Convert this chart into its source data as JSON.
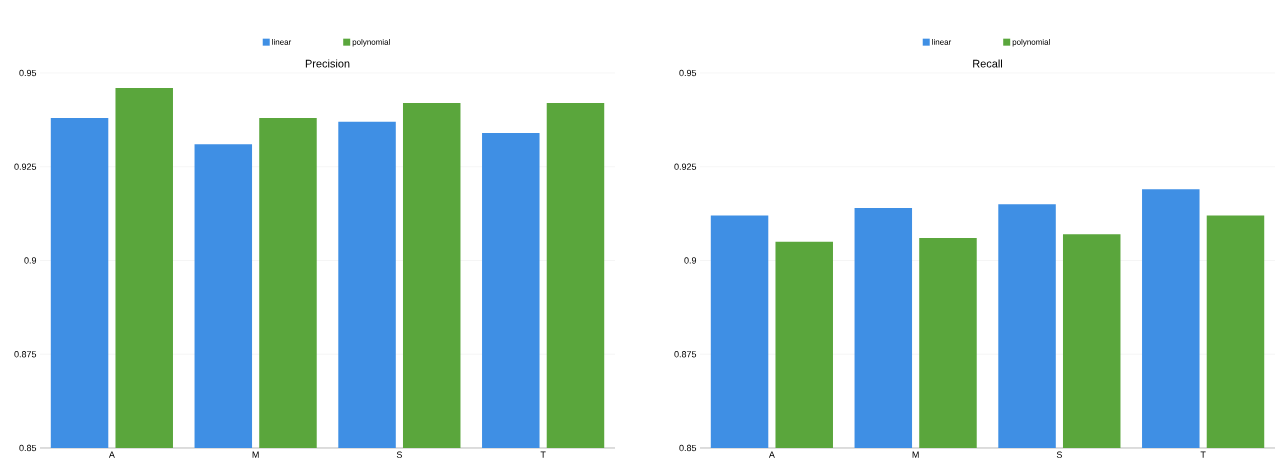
{
  "chart_data": [
    {
      "type": "bar",
      "title": "Precision",
      "categories": [
        "A",
        "M",
        "S",
        "T"
      ],
      "series": [
        {
          "name": "linear",
          "color": "#3f8fe4",
          "values": [
            0.938,
            0.931,
            0.937,
            0.934
          ]
        },
        {
          "name": "polynomial",
          "color": "#5aa63c",
          "values": [
            0.946,
            0.938,
            0.942,
            0.942
          ]
        }
      ],
      "ylim": [
        0.85,
        0.95
      ],
      "yticks": [
        0.85,
        0.875,
        0.9,
        0.925,
        0.95
      ],
      "grid": "y",
      "legend": "top"
    },
    {
      "type": "bar",
      "title": "Recall",
      "categories": [
        "A",
        "M",
        "S",
        "T"
      ],
      "series": [
        {
          "name": "linear",
          "color": "#3f8fe4",
          "values": [
            0.912,
            0.914,
            0.915,
            0.919
          ]
        },
        {
          "name": "polynomial",
          "color": "#5aa63c",
          "values": [
            0.905,
            0.906,
            0.907,
            0.912
          ]
        }
      ],
      "ylim": [
        0.85,
        0.95
      ],
      "yticks": [
        0.85,
        0.875,
        0.9,
        0.925,
        0.95
      ],
      "grid": "y",
      "legend": "top"
    }
  ]
}
